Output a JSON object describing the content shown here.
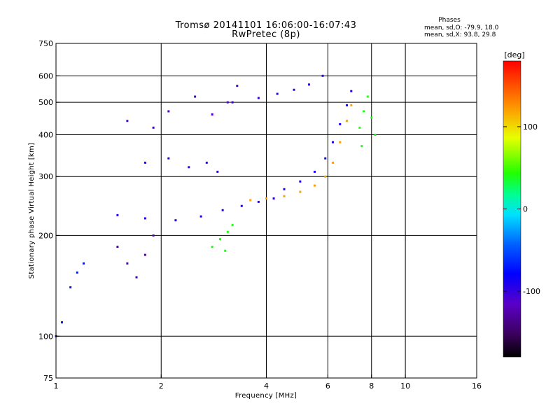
{
  "title_line1": "Tromsø 20141101 16:06:00-16:07:43",
  "title_line2": "RwPretec (8p)",
  "phase_info": {
    "heading": "Phases",
    "line_o": "mean, sd,O: -79.9, 18.0",
    "line_x": "mean, sd,X:  93.8, 29.8"
  },
  "chart_data": {
    "type": "scatter",
    "xlabel": "Frequency [MHz]",
    "ylabel": "Stationary phase Virtual Height [km]",
    "xscale": "log",
    "yscale": "log",
    "xlim": [
      1,
      16
    ],
    "ylim": [
      75,
      750
    ],
    "x_ticks": [
      1,
      2,
      4,
      6,
      8,
      10,
      16
    ],
    "y_ticks": [
      75,
      100,
      200,
      300,
      400,
      500,
      600,
      750
    ],
    "x_gridlines": [
      2,
      4,
      6,
      8,
      10
    ],
    "y_gridlines": [
      100,
      200,
      300,
      400,
      500,
      600
    ],
    "colorbar": {
      "label": "[deg]",
      "range": [
        -180,
        180
      ],
      "ticks": [
        100,
        0,
        -100
      ],
      "colormap": "rainbow (black→violet→blue→cyan→green→yellow→orange→red)"
    },
    "series": [
      {
        "phase_deg": -95,
        "points": [
          [
            1.5,
            230
          ],
          [
            1.8,
            225
          ],
          [
            2.2,
            222
          ],
          [
            2.6,
            228
          ],
          [
            3.0,
            238
          ],
          [
            3.4,
            245
          ],
          [
            3.8,
            252
          ],
          [
            4.2,
            258
          ]
        ]
      },
      {
        "phase_deg": 120,
        "points": [
          [
            3.6,
            255
          ],
          [
            4.0,
            258
          ],
          [
            4.5,
            262
          ],
          [
            5.0,
            270
          ],
          [
            5.5,
            282
          ],
          [
            5.9,
            300
          ],
          [
            6.2,
            330
          ],
          [
            6.5,
            380
          ],
          [
            6.8,
            440
          ],
          [
            7.0,
            490
          ]
        ]
      },
      {
        "phase_deg": -90,
        "points": [
          [
            4.5,
            275
          ],
          [
            5.0,
            290
          ],
          [
            5.5,
            310
          ],
          [
            5.9,
            340
          ],
          [
            6.2,
            380
          ],
          [
            6.5,
            430
          ],
          [
            6.8,
            490
          ],
          [
            7.0,
            540
          ]
        ]
      },
      {
        "phase_deg": 40,
        "points": [
          [
            7.4,
            420
          ],
          [
            7.6,
            470
          ],
          [
            7.8,
            520
          ],
          [
            8.0,
            450
          ],
          [
            8.2,
            400
          ],
          [
            7.5,
            370
          ]
        ]
      },
      {
        "phase_deg": 40,
        "points": [
          [
            2.8,
            185
          ],
          [
            2.95,
            195
          ],
          [
            3.1,
            205
          ],
          [
            3.2,
            215
          ],
          [
            3.05,
            180
          ]
        ]
      },
      {
        "phase_deg": -100,
        "points": [
          [
            3.2,
            500
          ],
          [
            3.8,
            515
          ],
          [
            4.3,
            530
          ],
          [
            4.8,
            545
          ],
          [
            5.3,
            565
          ],
          [
            5.8,
            600
          ]
        ]
      },
      {
        "phase_deg": -110,
        "points": [
          [
            1.6,
            440
          ],
          [
            1.9,
            420
          ],
          [
            2.1,
            470
          ],
          [
            2.5,
            520
          ],
          [
            2.8,
            460
          ],
          [
            3.1,
            500
          ],
          [
            3.3,
            560
          ]
        ]
      },
      {
        "phase_deg": -100,
        "points": [
          [
            1.8,
            330
          ],
          [
            2.1,
            340
          ],
          [
            2.4,
            320
          ],
          [
            2.7,
            330
          ],
          [
            2.9,
            310
          ]
        ]
      },
      {
        "phase_deg": -125,
        "points": [
          [
            1.5,
            185
          ],
          [
            1.6,
            165
          ],
          [
            1.7,
            150
          ],
          [
            1.8,
            175
          ],
          [
            1.9,
            200
          ]
        ]
      },
      {
        "phase_deg": -70,
        "points": [
          [
            1.0,
            100
          ],
          [
            1.04,
            110
          ],
          [
            1.1,
            140
          ],
          [
            1.15,
            155
          ],
          [
            1.2,
            165
          ]
        ]
      }
    ]
  }
}
